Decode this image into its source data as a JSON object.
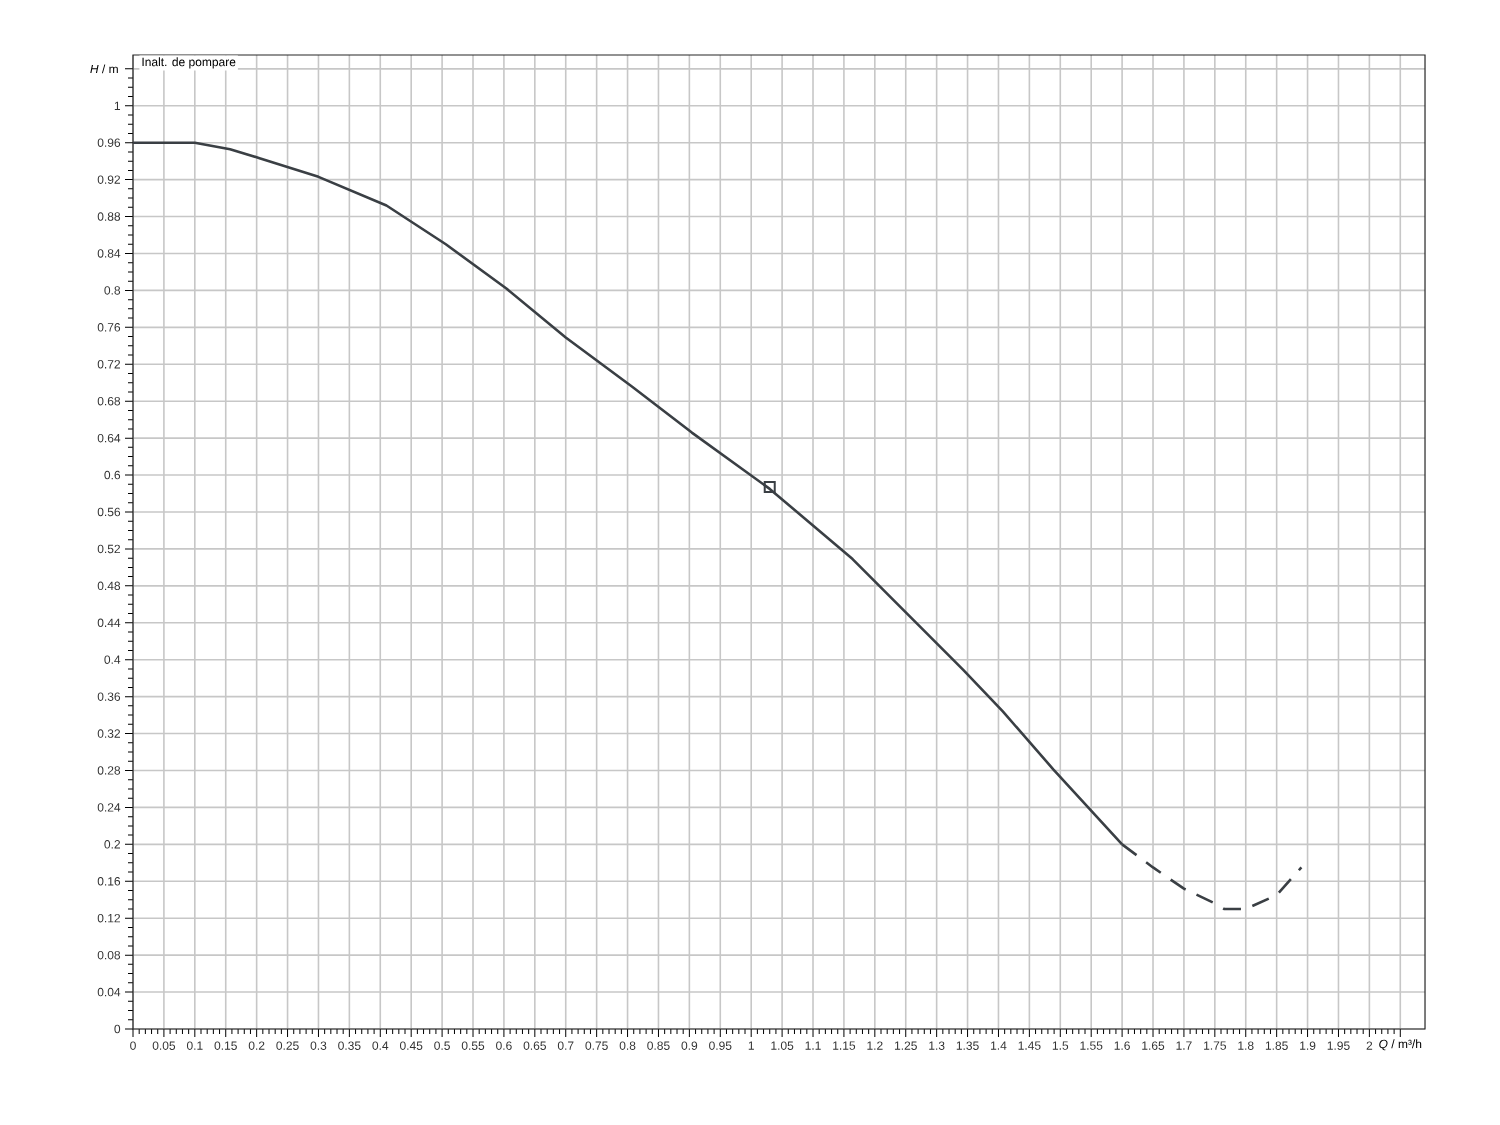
{
  "chart_data": {
    "type": "line",
    "title": "Inalt. de pompare",
    "xlabel": "*Q* / m³/h",
    "ylabel": "*H* / m",
    "xlim": [
      0,
      2.09
    ],
    "ylim": [
      0,
      1.055
    ],
    "xticks": [
      0,
      0.05,
      0.1,
      0.15,
      0.2,
      0.25,
      0.3,
      0.35,
      0.4,
      0.45,
      0.5,
      0.55,
      0.6,
      0.65,
      0.7,
      0.75,
      0.8,
      0.85,
      0.9,
      0.95,
      1,
      1.05,
      1.1,
      1.15,
      1.2,
      1.25,
      1.3,
      1.35,
      1.4,
      1.45,
      1.5,
      1.55,
      1.6,
      1.65,
      1.7,
      1.75,
      1.8,
      1.85,
      1.9,
      1.95,
      2,
      {
        "value": 2.05,
        "label": null
      }
    ],
    "yticks": [
      0,
      0.04,
      0.08,
      0.12,
      0.16,
      0.2,
      0.24,
      0.28,
      0.32,
      0.36,
      0.4,
      0.44,
      0.48,
      0.52,
      0.56,
      0.6,
      0.64,
      0.68,
      0.72,
      0.76,
      0.8,
      0.84,
      0.88,
      0.92,
      0.96,
      1,
      {
        "value": 1.04,
        "label": null
      }
    ],
    "grid": true,
    "series": [
      {
        "color": "#3a3f44",
        "line_style": "solid",
        "marker": "none",
        "x": [
          0,
          0.1,
          0.157,
          0.206,
          0.3,
          0.41,
          0.506,
          0.604,
          0.7,
          0.807,
          0.904,
          1.03,
          1.164,
          1.261,
          1.343,
          1.407,
          1.489,
          1.6
        ],
        "values": [
          0.96,
          0.96,
          0.953,
          0.943,
          0.923,
          0.892,
          0.85,
          0.802,
          0.749,
          0.696,
          0.646,
          0.585,
          0.509,
          0.444,
          0.389,
          0.344,
          0.281,
          0.2
        ]
      },
      {
        "color": "#3a3f44",
        "line_style": "dashed",
        "marker": "none",
        "x": [
          1.6,
          1.65,
          1.7,
          1.75,
          1.765,
          1.8,
          1.85,
          1.89
        ],
        "values": [
          0.2,
          0.175,
          0.152,
          0.136,
          0.13,
          0.13,
          0.145,
          0.175
        ]
      },
      {
        "type": "scatter",
        "color": "#3a3f44",
        "marker": "square",
        "x": [
          1.03
        ],
        "values": [
          0.587
        ]
      }
    ]
  }
}
